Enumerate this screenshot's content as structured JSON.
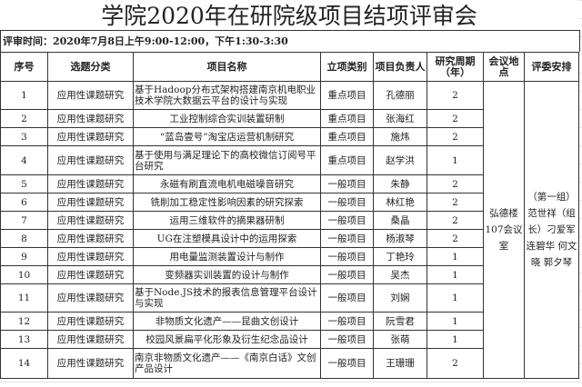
{
  "title": "学院2020年在研院级项目结项评审会",
  "review_time": "评审时间：2020年7月8日上午9:00-12:00，下午1:30-3:30",
  "headers": [
    "序号",
    "选题分类",
    "项目名称",
    "立项类别",
    "项目负责人",
    "研究周期（年）",
    "会议地点",
    "评委安排"
  ],
  "location": "弘德楼107会议室",
  "judges": "（第一组）范世祥（组长）刁爱军 连碧华 何文晓 郭夕琴",
  "rows": [
    {
      "no": "1",
      "category": "应用性课题研究",
      "name": "基于Hadoop分布式架构搭建南京机电职业技术学院大数据云平台的设计与实现",
      "type": "重点项目",
      "leader": "孔德丽",
      "period": "2"
    },
    {
      "no": "2",
      "category": "应用性课题研究",
      "name": "工业控制综合实训装置研制",
      "type": "重点项目",
      "leader": "张海红",
      "period": "2"
    },
    {
      "no": "3",
      "category": "应用性课题研究",
      "name": "“蓝岛壹号”淘宝店运营机制研究",
      "type": "重点项目",
      "leader": "施炜",
      "period": "2"
    },
    {
      "no": "4",
      "category": "应用性课题研究",
      "name": "基于使用与满足理论下的高校微信订阅号平台研究",
      "type": "重点项目",
      "leader": "赵学洪",
      "period": "1"
    },
    {
      "no": "5",
      "category": "应用性课题研究",
      "name": "永磁有刷直流电机电磁噪音研究",
      "type": "一般项目",
      "leader": "朱静",
      "period": "2"
    },
    {
      "no": "6",
      "category": "应用性课题研究",
      "name": "铣削加工稳定性影响因素的研究探索",
      "type": "一般项目",
      "leader": "林红艳",
      "period": "2"
    },
    {
      "no": "7",
      "category": "应用性课题研究",
      "name": "运用三维软件的摘果器研制",
      "type": "一般项目",
      "leader": "桑晶",
      "period": "2"
    },
    {
      "no": "8",
      "category": "应用性课题研究",
      "name": "UG在注塑模具设计中的运用探索",
      "type": "一般项目",
      "leader": "杨淑琴",
      "period": "2"
    },
    {
      "no": "9",
      "category": "应用性课题研究",
      "name": "用电量监测装置设计与制作",
      "type": "一般项目",
      "leader": "丁艳玲",
      "period": "1"
    },
    {
      "no": "10",
      "category": "应用性课题研究",
      "name": "变频器实训装置的设计与制作",
      "type": "一般项目",
      "leader": "吴杰",
      "period": "1"
    },
    {
      "no": "11",
      "category": "应用性课题研究",
      "name": "基于Node.JS技术的报表信息管理平台设计与实现",
      "type": "一般项目",
      "leader": "刘娴",
      "period": "1"
    },
    {
      "no": "12",
      "category": "应用性课题研究",
      "name": "非物质文化遗产——昆曲文创设计",
      "type": "一般项目",
      "leader": "阮雪君",
      "period": "1"
    },
    {
      "no": "13",
      "category": "应用性课题研究",
      "name": "校园风景扁平化形象及衍生纪念品设计",
      "type": "一般项目",
      "leader": "张萌",
      "period": "1"
    },
    {
      "no": "14",
      "category": "应用性课题研究",
      "name": "南京非物质文化遗产——《南京白话》文创产品设计",
      "type": "一般项目",
      "leader": "王珊珊",
      "period": "2"
    }
  ]
}
